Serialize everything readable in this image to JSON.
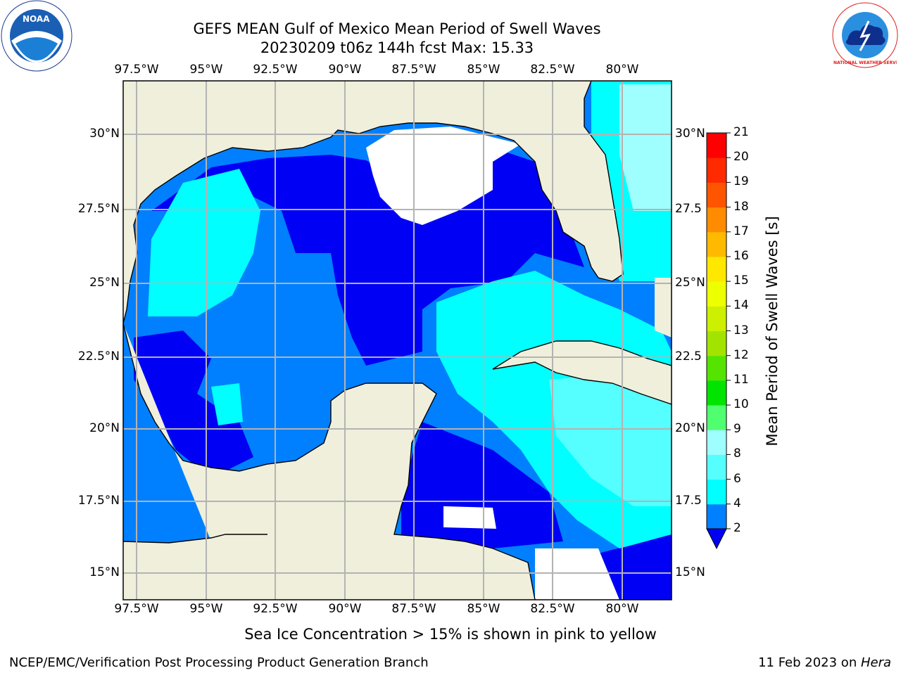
{
  "title_line1": "GEFS MEAN Gulf of Mexico Mean Period of Swell Waves",
  "title_line2": "20230209 t06z 144h fcst   Max: 15.33",
  "logos": {
    "left": "NOAA",
    "right": "NATIONAL WEATHER SERVICE"
  },
  "map": {
    "lon_ticks": [
      "97.5°W",
      "95°W",
      "92.5°W",
      "90°W",
      "87.5°W",
      "85°W",
      "82.5°W",
      "80°W"
    ],
    "lat_ticks_left": [
      "30°N",
      "27.5°N",
      "25°N",
      "22.5°N",
      "20°N",
      "17.5°N",
      "15°N"
    ],
    "lat_ticks_right": [
      "30°N",
      "27.5",
      "25°N",
      "22.5",
      "20°N",
      "17.5",
      "15°N"
    ],
    "land_color": "#efefdc",
    "grid_color": "#b3b3b3"
  },
  "colorbar": {
    "label": "Mean Period of Swell Waves [s]",
    "ticks": [
      "2",
      "4",
      "6",
      "8",
      "9",
      "10",
      "11",
      "12",
      "13",
      "14",
      "15",
      "16",
      "17",
      "18",
      "19",
      "20",
      "21"
    ],
    "colors": [
      "#0000f5",
      "#0080ff",
      "#00ffff",
      "#55ffff",
      "#9fffff",
      "#50ff70",
      "#00e400",
      "#55e400",
      "#a2e400",
      "#ccf000",
      "#eeff00",
      "#ffe800",
      "#ffba00",
      "#ff8c00",
      "#ff5500",
      "#ff2a00",
      "#ff0000"
    ]
  },
  "note": "Sea Ice Concentration > 15% is shown in pink to yellow",
  "footer_left": "NCEP/EMC/Verification Post Processing Product Generation Branch",
  "footer_right_date": "11 Feb 2023 on ",
  "footer_right_host": "Hera"
}
